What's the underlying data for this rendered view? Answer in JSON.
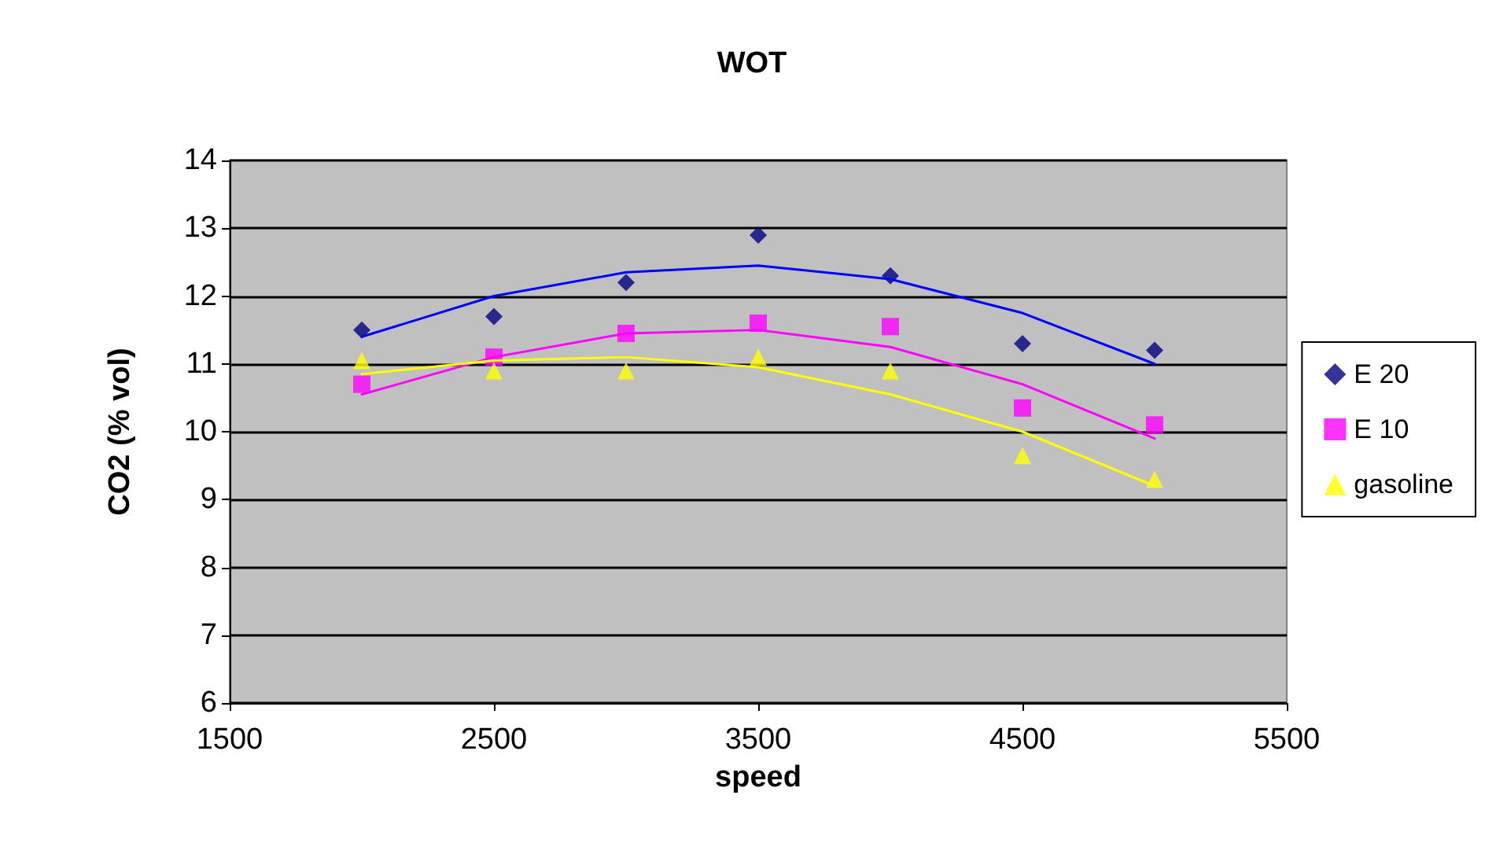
{
  "chart_data": {
    "type": "scatter",
    "title": "WOT",
    "xlabel": "speed",
    "ylabel": "CO2 (% vol)",
    "x": [
      2000,
      2500,
      3000,
      3500,
      4000,
      4500,
      5000
    ],
    "xlim": [
      1500,
      5500
    ],
    "xticks": [
      1500,
      2500,
      3500,
      4500,
      5500
    ],
    "ylim": [
      6,
      14
    ],
    "yticks": [
      6,
      7,
      8,
      9,
      10,
      11,
      12,
      13,
      14
    ],
    "grid": "y",
    "legend": "right",
    "series": [
      {
        "name": "E 20",
        "color": "#000080",
        "marker": "diamond",
        "values": [
          11.5,
          11.7,
          12.2,
          12.9,
          12.3,
          11.3,
          11.2
        ]
      },
      {
        "name": "E 10",
        "color": "#ff00ff",
        "marker": "square",
        "values": [
          10.7,
          11.1,
          11.45,
          11.6,
          11.55,
          10.35,
          10.1
        ]
      },
      {
        "name": "gasoline",
        "color": "#ffff00",
        "marker": "triangle",
        "values": [
          11.05,
          10.9,
          10.9,
          11.1,
          10.9,
          9.65,
          9.3
        ]
      },
      {
        "type": "line",
        "color": "#0000ff",
        "marker": "none",
        "x": [
          2000,
          2500,
          3000,
          3500,
          4000,
          4500,
          5000
        ],
        "values": [
          11.4,
          12.0,
          12.35,
          12.45,
          12.25,
          11.75,
          11.0
        ]
      },
      {
        "type": "line",
        "color": "#ff00ff",
        "marker": "none",
        "x": [
          2000,
          2500,
          3000,
          3500,
          4000,
          4500,
          5000
        ],
        "values": [
          10.55,
          11.1,
          11.45,
          11.5,
          11.25,
          10.7,
          9.9
        ]
      },
      {
        "type": "line",
        "color": "#ffff00",
        "marker": "none",
        "x": [
          2000,
          2500,
          3000,
          3500,
          4000,
          4500,
          5000
        ],
        "values": [
          10.85,
          11.05,
          11.1,
          10.95,
          10.55,
          10.0,
          9.2
        ]
      }
    ]
  }
}
